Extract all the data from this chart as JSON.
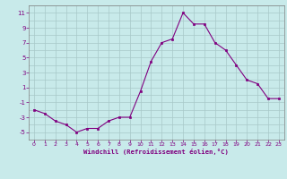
{
  "x": [
    0,
    1,
    2,
    3,
    4,
    5,
    6,
    7,
    8,
    9,
    10,
    11,
    12,
    13,
    14,
    15,
    16,
    17,
    18,
    19,
    20,
    21,
    22,
    23
  ],
  "y": [
    -2,
    -2.5,
    -3.5,
    -4,
    -5,
    -4.5,
    -4.5,
    -3.5,
    -3,
    -3,
    0.5,
    4.5,
    7,
    7.5,
    11,
    9.5,
    9.5,
    7,
    6,
    4,
    2,
    1.5,
    -0.5,
    -0.5
  ],
  "line_color": "#800080",
  "marker_color": "#800080",
  "bg_color": "#c8eaea",
  "grid_color": "#a8c8c8",
  "axis_color": "#606060",
  "tick_color": "#800080",
  "xlabel": "Windchill (Refroidissement éolien,°C)",
  "xlabel_color": "#800080",
  "ylim": [
    -6,
    12
  ],
  "xlim": [
    -0.5,
    23.5
  ],
  "yticks": [
    -5,
    -3,
    -1,
    1,
    3,
    5,
    7,
    9,
    11
  ],
  "xticks": [
    0,
    1,
    2,
    3,
    4,
    5,
    6,
    7,
    8,
    9,
    10,
    11,
    12,
    13,
    14,
    15,
    16,
    17,
    18,
    19,
    20,
    21,
    22,
    23
  ]
}
